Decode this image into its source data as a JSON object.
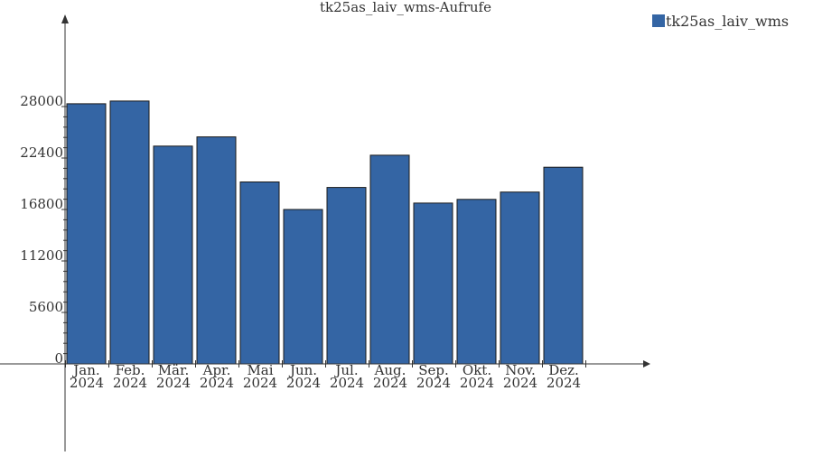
{
  "chart_data": {
    "type": "bar",
    "title": "tk25as_laiv_wms-Aufrufe",
    "xlabel": "",
    "ylabel": "",
    "categories": [
      [
        "Jan.",
        "2024"
      ],
      [
        "Feb.",
        "2024"
      ],
      [
        "Mär.",
        "2024"
      ],
      [
        "Apr.",
        "2024"
      ],
      [
        "Mai",
        "2024"
      ],
      [
        "Jun.",
        "2024"
      ],
      [
        "Jul.",
        "2024"
      ],
      [
        "Aug.",
        "2024"
      ],
      [
        "Sep.",
        "2024"
      ],
      [
        "Okt.",
        "2024"
      ],
      [
        "Nov.",
        "2024"
      ],
      [
        "Dez.",
        "2024"
      ]
    ],
    "series": [
      {
        "name": "tk25as_laiv_wms",
        "color": "#3465a4",
        "values": [
          28300,
          28600,
          23700,
          24700,
          19800,
          16800,
          19200,
          22700,
          17500,
          17900,
          18700,
          21400
        ]
      }
    ],
    "yticks": [
      0,
      5600,
      11200,
      16800,
      22400,
      28000
    ],
    "ylim": [
      0,
      28600
    ],
    "legend_position": "top-right",
    "grid": false
  }
}
